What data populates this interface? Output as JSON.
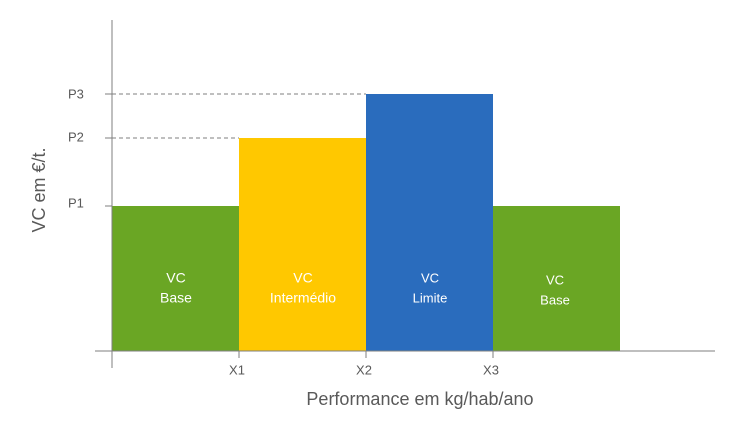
{
  "y_axis": {
    "title": "VC em €/t.",
    "ticks": [
      "P1",
      "P2",
      "P3"
    ]
  },
  "x_axis": {
    "title": "Performance em kg/hab/ano",
    "ticks": [
      "X1",
      "X2",
      "X3"
    ]
  },
  "bars": [
    {
      "lines": [
        "VC",
        "Base"
      ]
    },
    {
      "lines": [
        "VC",
        "Intermédio"
      ]
    },
    {
      "lines": [
        "VC",
        "Limite"
      ]
    },
    {
      "lines": [
        "VC",
        "Base"
      ]
    }
  ]
}
